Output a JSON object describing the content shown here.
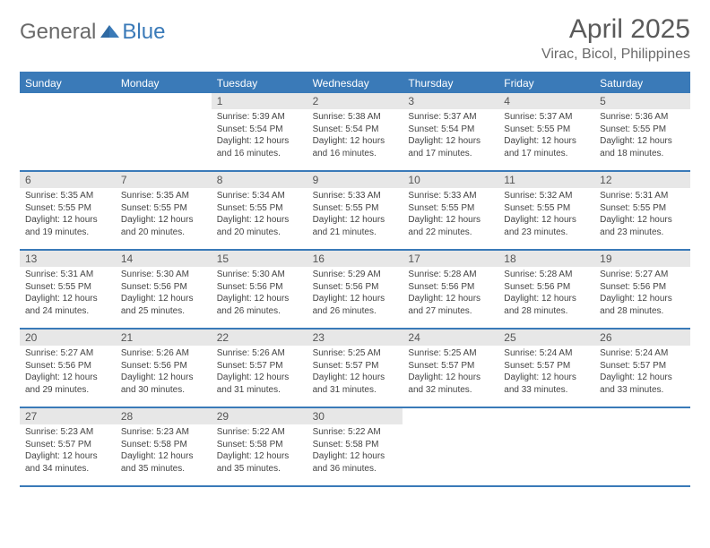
{
  "logo": {
    "general": "General",
    "blue": "Blue"
  },
  "title": "April 2025",
  "subtitle": "Virac, Bicol, Philippines",
  "colors": {
    "primary": "#3a7ab8",
    "header_bg": "#3a7ab8",
    "daynum_bg": "#e7e7e7",
    "text_main": "#333333",
    "text_muted": "#6a6a6a",
    "background": "#ffffff"
  },
  "typography": {
    "title_fontsize": 30,
    "subtitle_fontsize": 16,
    "weekday_fontsize": 12,
    "daynum_fontsize": 12,
    "body_fontsize": 10,
    "font_family": "Arial"
  },
  "layout": {
    "columns": 7,
    "rows": 5,
    "cell_min_height": 86,
    "border_width": 2,
    "border_color": "#3a7ab8"
  },
  "labels": {
    "sunrise": "Sunrise:",
    "sunset": "Sunset:",
    "daylight": "Daylight:"
  },
  "weekdays": [
    "Sunday",
    "Monday",
    "Tuesday",
    "Wednesday",
    "Thursday",
    "Friday",
    "Saturday"
  ],
  "weeks": [
    [
      null,
      null,
      {
        "n": "1",
        "sr": "5:39 AM",
        "ss": "5:54 PM",
        "d1": "12 hours",
        "d2": "and 16 minutes."
      },
      {
        "n": "2",
        "sr": "5:38 AM",
        "ss": "5:54 PM",
        "d1": "12 hours",
        "d2": "and 16 minutes."
      },
      {
        "n": "3",
        "sr": "5:37 AM",
        "ss": "5:54 PM",
        "d1": "12 hours",
        "d2": "and 17 minutes."
      },
      {
        "n": "4",
        "sr": "5:37 AM",
        "ss": "5:55 PM",
        "d1": "12 hours",
        "d2": "and 17 minutes."
      },
      {
        "n": "5",
        "sr": "5:36 AM",
        "ss": "5:55 PM",
        "d1": "12 hours",
        "d2": "and 18 minutes."
      }
    ],
    [
      {
        "n": "6",
        "sr": "5:35 AM",
        "ss": "5:55 PM",
        "d1": "12 hours",
        "d2": "and 19 minutes."
      },
      {
        "n": "7",
        "sr": "5:35 AM",
        "ss": "5:55 PM",
        "d1": "12 hours",
        "d2": "and 20 minutes."
      },
      {
        "n": "8",
        "sr": "5:34 AM",
        "ss": "5:55 PM",
        "d1": "12 hours",
        "d2": "and 20 minutes."
      },
      {
        "n": "9",
        "sr": "5:33 AM",
        "ss": "5:55 PM",
        "d1": "12 hours",
        "d2": "and 21 minutes."
      },
      {
        "n": "10",
        "sr": "5:33 AM",
        "ss": "5:55 PM",
        "d1": "12 hours",
        "d2": "and 22 minutes."
      },
      {
        "n": "11",
        "sr": "5:32 AM",
        "ss": "5:55 PM",
        "d1": "12 hours",
        "d2": "and 23 minutes."
      },
      {
        "n": "12",
        "sr": "5:31 AM",
        "ss": "5:55 PM",
        "d1": "12 hours",
        "d2": "and 23 minutes."
      }
    ],
    [
      {
        "n": "13",
        "sr": "5:31 AM",
        "ss": "5:55 PM",
        "d1": "12 hours",
        "d2": "and 24 minutes."
      },
      {
        "n": "14",
        "sr": "5:30 AM",
        "ss": "5:56 PM",
        "d1": "12 hours",
        "d2": "and 25 minutes."
      },
      {
        "n": "15",
        "sr": "5:30 AM",
        "ss": "5:56 PM",
        "d1": "12 hours",
        "d2": "and 26 minutes."
      },
      {
        "n": "16",
        "sr": "5:29 AM",
        "ss": "5:56 PM",
        "d1": "12 hours",
        "d2": "and 26 minutes."
      },
      {
        "n": "17",
        "sr": "5:28 AM",
        "ss": "5:56 PM",
        "d1": "12 hours",
        "d2": "and 27 minutes."
      },
      {
        "n": "18",
        "sr": "5:28 AM",
        "ss": "5:56 PM",
        "d1": "12 hours",
        "d2": "and 28 minutes."
      },
      {
        "n": "19",
        "sr": "5:27 AM",
        "ss": "5:56 PM",
        "d1": "12 hours",
        "d2": "and 28 minutes."
      }
    ],
    [
      {
        "n": "20",
        "sr": "5:27 AM",
        "ss": "5:56 PM",
        "d1": "12 hours",
        "d2": "and 29 minutes."
      },
      {
        "n": "21",
        "sr": "5:26 AM",
        "ss": "5:56 PM",
        "d1": "12 hours",
        "d2": "and 30 minutes."
      },
      {
        "n": "22",
        "sr": "5:26 AM",
        "ss": "5:57 PM",
        "d1": "12 hours",
        "d2": "and 31 minutes."
      },
      {
        "n": "23",
        "sr": "5:25 AM",
        "ss": "5:57 PM",
        "d1": "12 hours",
        "d2": "and 31 minutes."
      },
      {
        "n": "24",
        "sr": "5:25 AM",
        "ss": "5:57 PM",
        "d1": "12 hours",
        "d2": "and 32 minutes."
      },
      {
        "n": "25",
        "sr": "5:24 AM",
        "ss": "5:57 PM",
        "d1": "12 hours",
        "d2": "and 33 minutes."
      },
      {
        "n": "26",
        "sr": "5:24 AM",
        "ss": "5:57 PM",
        "d1": "12 hours",
        "d2": "and 33 minutes."
      }
    ],
    [
      {
        "n": "27",
        "sr": "5:23 AM",
        "ss": "5:57 PM",
        "d1": "12 hours",
        "d2": "and 34 minutes."
      },
      {
        "n": "28",
        "sr": "5:23 AM",
        "ss": "5:58 PM",
        "d1": "12 hours",
        "d2": "and 35 minutes."
      },
      {
        "n": "29",
        "sr": "5:22 AM",
        "ss": "5:58 PM",
        "d1": "12 hours",
        "d2": "and 35 minutes."
      },
      {
        "n": "30",
        "sr": "5:22 AM",
        "ss": "5:58 PM",
        "d1": "12 hours",
        "d2": "and 36 minutes."
      },
      null,
      null,
      null
    ]
  ]
}
